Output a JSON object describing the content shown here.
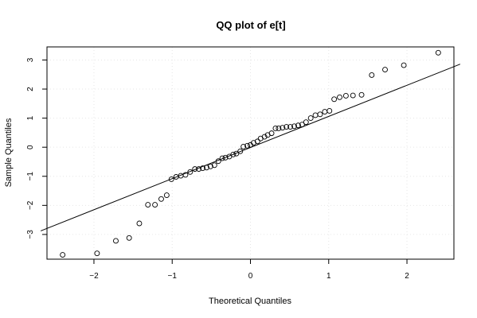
{
  "chart_data": {
    "type": "scatter",
    "title": "QQ plot of e[t]",
    "xlabel": "Theoretical Quantiles",
    "ylabel": "Sample Quantiles",
    "xlim": [
      -2.6,
      2.6
    ],
    "ylim": [
      -3.85,
      3.45
    ],
    "x_ticks": [
      -2,
      -1,
      0,
      1,
      2
    ],
    "y_ticks": [
      -3,
      -2,
      -1,
      0,
      1,
      2,
      3
    ],
    "grid": true,
    "reference_line": {
      "slope": 1.07,
      "intercept": -0.01
    },
    "points": [
      [
        -2.4,
        -3.7
      ],
      [
        -1.96,
        -3.65
      ],
      [
        -1.72,
        -3.22
      ],
      [
        -1.55,
        -3.12
      ],
      [
        -1.42,
        -2.62
      ],
      [
        -1.31,
        -1.98
      ],
      [
        -1.22,
        -1.98
      ],
      [
        -1.14,
        -1.78
      ],
      [
        -1.07,
        -1.65
      ],
      [
        -1.01,
        -1.1
      ],
      [
        -0.95,
        -1.02
      ],
      [
        -0.89,
        -0.98
      ],
      [
        -0.83,
        -0.95
      ],
      [
        -0.77,
        -0.85
      ],
      [
        -0.71,
        -0.75
      ],
      [
        -0.66,
        -0.75
      ],
      [
        -0.61,
        -0.72
      ],
      [
        -0.56,
        -0.7
      ],
      [
        -0.51,
        -0.66
      ],
      [
        -0.46,
        -0.62
      ],
      [
        -0.41,
        -0.48
      ],
      [
        -0.36,
        -0.38
      ],
      [
        -0.32,
        -0.36
      ],
      [
        -0.27,
        -0.32
      ],
      [
        -0.22,
        -0.25
      ],
      [
        -0.18,
        -0.22
      ],
      [
        -0.13,
        -0.14
      ],
      [
        -0.09,
        0.02
      ],
      [
        -0.04,
        0.05
      ],
      [
        0.0,
        0.08
      ],
      [
        0.04,
        0.15
      ],
      [
        0.09,
        0.2
      ],
      [
        0.13,
        0.3
      ],
      [
        0.18,
        0.36
      ],
      [
        0.22,
        0.42
      ],
      [
        0.27,
        0.48
      ],
      [
        0.32,
        0.65
      ],
      [
        0.36,
        0.65
      ],
      [
        0.41,
        0.67
      ],
      [
        0.46,
        0.7
      ],
      [
        0.51,
        0.7
      ],
      [
        0.56,
        0.72
      ],
      [
        0.61,
        0.75
      ],
      [
        0.66,
        0.78
      ],
      [
        0.71,
        0.86
      ],
      [
        0.77,
        1.0
      ],
      [
        0.83,
        1.1
      ],
      [
        0.89,
        1.13
      ],
      [
        0.95,
        1.22
      ],
      [
        1.01,
        1.25
      ],
      [
        1.07,
        1.65
      ],
      [
        1.14,
        1.72
      ],
      [
        1.22,
        1.77
      ],
      [
        1.31,
        1.78
      ],
      [
        1.42,
        1.8
      ],
      [
        1.55,
        2.48
      ],
      [
        1.72,
        2.67
      ],
      [
        1.96,
        2.82
      ],
      [
        2.4,
        3.25
      ]
    ]
  }
}
